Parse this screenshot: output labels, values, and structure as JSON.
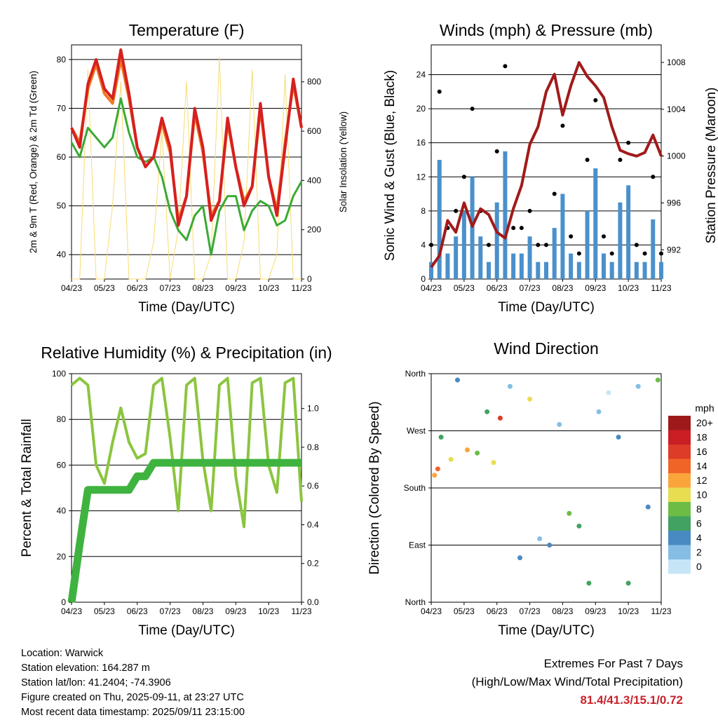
{
  "x_ticks": [
    "04/23",
    "05/23",
    "06/23",
    "07/23",
    "08/23",
    "09/23",
    "10/23",
    "11/23"
  ],
  "time_axis_label": "Time (Day/UTC)",
  "colors": {
    "temp2m": "#d62020",
    "temp9m": "#f07a20",
    "dewpoint": "#3aaa35",
    "solar": "#f7dc6f",
    "wind": "#4a90cc",
    "gust": "#000000",
    "pressure": "#a11a1a",
    "rh": "#8bc53f",
    "precip": "#3fb33f"
  },
  "chart_data": [
    {
      "type": "line",
      "title": "Temperature (F)",
      "ylabel": "2m & 9m T (Red, Orange) & 2m Td (Green)",
      "y2label": "Solar Insolation (Yellow)",
      "ylim": [
        35,
        83
      ],
      "y2lim": [
        0,
        950
      ],
      "yticks": [
        40,
        50,
        60,
        70,
        80
      ],
      "y2ticks": [
        0,
        200,
        400,
        600,
        800
      ],
      "x": [
        0,
        0.25,
        0.5,
        0.75,
        1.0,
        1.25,
        1.5,
        1.75,
        2.0,
        2.25,
        2.5,
        2.75,
        3.0,
        3.25,
        3.5,
        3.75,
        4.0,
        4.25,
        4.5,
        4.75,
        5.0,
        5.25,
        5.5,
        5.75,
        6.0,
        6.25,
        6.5,
        6.75,
        7.0
      ],
      "series": [
        {
          "name": "2m T",
          "values": [
            66,
            62,
            75,
            80,
            74,
            72,
            82,
            73,
            62,
            58,
            60,
            68,
            62,
            46,
            52,
            70,
            62,
            47,
            51,
            68,
            58,
            50,
            54,
            71,
            56,
            48,
            62,
            76,
            66
          ]
        },
        {
          "name": "9m T",
          "values": [
            66,
            63,
            74,
            79,
            73,
            71,
            80,
            72,
            62,
            58,
            60,
            67,
            61,
            47,
            52,
            69,
            61,
            48,
            51,
            67,
            58,
            51,
            54,
            70,
            56,
            49,
            63,
            75,
            66
          ]
        },
        {
          "name": "2m Td",
          "values": [
            63,
            60,
            66,
            64,
            62,
            64,
            72,
            65,
            60,
            59,
            60,
            56,
            49,
            45,
            43,
            48,
            50,
            40,
            49,
            52,
            52,
            45,
            49,
            51,
            50,
            46,
            47,
            52,
            55
          ]
        },
        {
          "name": "Solar",
          "values": [
            0,
            0,
            850,
            0,
            0,
            300,
            800,
            0,
            0,
            0,
            150,
            600,
            0,
            200,
            800,
            0,
            0,
            100,
            900,
            0,
            0,
            150,
            850,
            0,
            0,
            100,
            830,
            0,
            0
          ]
        }
      ]
    },
    {
      "type": "scatter",
      "title": "Winds (mph) & Pressure (mb)",
      "ylabel": "Sonic Wind & Gust (Blue, Black)",
      "y2label": "Station Pressure (Maroon)",
      "ylim": [
        0,
        27.5
      ],
      "y2lim": [
        989.5,
        1009.5
      ],
      "yticks": [
        0,
        4,
        8,
        12,
        16,
        20,
        24
      ],
      "y2ticks": [
        992,
        996,
        1000,
        1004,
        1008
      ],
      "x": [
        0,
        0.25,
        0.5,
        0.75,
        1.0,
        1.25,
        1.5,
        1.75,
        2.0,
        2.25,
        2.5,
        2.75,
        3.0,
        3.25,
        3.5,
        3.75,
        4.0,
        4.25,
        4.5,
        4.75,
        5.0,
        5.25,
        5.5,
        5.75,
        6.0,
        6.25,
        6.5,
        6.75,
        7.0
      ],
      "series": [
        {
          "name": "Sonic Wind",
          "values": [
            2,
            14,
            3,
            5,
            8,
            12,
            5,
            2,
            9,
            15,
            3,
            3,
            5,
            2,
            2,
            6,
            10,
            3,
            2,
            8,
            13,
            3,
            2,
            9,
            11,
            2,
            2,
            7,
            2
          ]
        },
        {
          "name": "Gust",
          "values": [
            4,
            22,
            6,
            8,
            12,
            20,
            8,
            4,
            15,
            25,
            6,
            6,
            8,
            4,
            4,
            10,
            18,
            5,
            3,
            14,
            21,
            5,
            3,
            14,
            16,
            4,
            3,
            12,
            3
          ]
        },
        {
          "name": "Pressure",
          "values": [
            990.5,
            991.5,
            994.5,
            993.5,
            996,
            994,
            995.5,
            995,
            993.5,
            993,
            995.5,
            997.5,
            1001,
            1002.5,
            1005.5,
            1007,
            1003.5,
            1006,
            1008,
            1006.8,
            1006,
            1005,
            1002.5,
            1000.5,
            1000.2,
            1000,
            1000.3,
            1001.8,
            1000
          ]
        }
      ]
    },
    {
      "type": "line",
      "title": "Relative Humidity (%) & Precipitation (in)",
      "ylabel": "Percent & Total Rainfall",
      "ylim": [
        0,
        100
      ],
      "y2lim": [
        0,
        1.18
      ],
      "yticks": [
        0,
        20,
        40,
        60,
        80,
        100
      ],
      "y2ticks": [
        0.0,
        0.2,
        0.4,
        0.6,
        0.8,
        1.0
      ],
      "x": [
        0,
        0.25,
        0.5,
        0.75,
        1.0,
        1.25,
        1.5,
        1.75,
        2.0,
        2.25,
        2.5,
        2.75,
        3.0,
        3.25,
        3.5,
        3.75,
        4.0,
        4.25,
        4.5,
        4.75,
        5.0,
        5.25,
        5.5,
        5.75,
        6.0,
        6.25,
        6.5,
        6.75,
        7.0
      ],
      "series": [
        {
          "name": "RH",
          "values": [
            95,
            98,
            95,
            60,
            52,
            70,
            85,
            70,
            63,
            65,
            95,
            98,
            72,
            40,
            95,
            98,
            62,
            40,
            95,
            98,
            55,
            33,
            96,
            98,
            60,
            48,
            96,
            98,
            44
          ]
        },
        {
          "name": "Precipitation",
          "values": [
            0.0,
            0.3,
            0.58,
            0.58,
            0.58,
            0.58,
            0.58,
            0.58,
            0.65,
            0.65,
            0.72,
            0.72,
            0.72,
            0.72,
            0.72,
            0.72,
            0.72,
            0.72,
            0.72,
            0.72,
            0.72,
            0.72,
            0.72,
            0.72,
            0.72,
            0.72,
            0.72,
            0.72,
            0.72
          ]
        }
      ]
    },
    {
      "type": "scatter",
      "title": "Wind Direction",
      "ylabel": "Direction (Colored By Speed)",
      "ycategories": [
        "North",
        "East",
        "South",
        "West",
        "North"
      ],
      "legend_title": "mph",
      "legend_labels": [
        "20+",
        "18",
        "16",
        "14",
        "12",
        "10",
        "8",
        "6",
        "4",
        "2",
        "0"
      ],
      "legend_colors": [
        "#9e1a1a",
        "#c81e24",
        "#dd3c28",
        "#f06428",
        "#f9a53c",
        "#e8dd50",
        "#6cbc46",
        "#41a261",
        "#4a8ac2",
        "#86bde5",
        "#c6e6f7"
      ],
      "x": [
        0.1,
        0.2,
        0.3,
        0.6,
        0.8,
        1.1,
        1.4,
        1.7,
        1.9,
        2.1,
        2.4,
        2.7,
        3.0,
        3.3,
        3.6,
        3.9,
        4.2,
        4.5,
        4.8,
        5.1,
        5.4,
        5.7,
        6.0,
        6.3,
        6.6,
        6.9
      ],
      "y": [
        200,
        210,
        260,
        225,
        350,
        240,
        235,
        300,
        220,
        290,
        340,
        70,
        320,
        100,
        90,
        280,
        140,
        120,
        30,
        300,
        330,
        260,
        30,
        340,
        150,
        350
      ],
      "speed": [
        12,
        14,
        6,
        10,
        4,
        12,
        8,
        6,
        10,
        16,
        2,
        4,
        10,
        2,
        4,
        2,
        8,
        6,
        6,
        2,
        0,
        4,
        6,
        2,
        4,
        8
      ]
    }
  ],
  "info": {
    "location": "Location: Warwick",
    "elevation": "Station elevation: 164.287 m",
    "latlon": "Station lat/lon: 41.2404; -74.3906",
    "created": "Figure created on Thu, 2025-09-11, at 23:27 UTC",
    "recent": "Most recent data timestamp: 2025/09/11 23:15:00"
  },
  "extremes": {
    "title": "Extremes For Past 7 Days",
    "subtitle": "(High/Low/Max Wind/Total Precipitation)",
    "values": "81.4/41.3/15.1/0.72"
  }
}
